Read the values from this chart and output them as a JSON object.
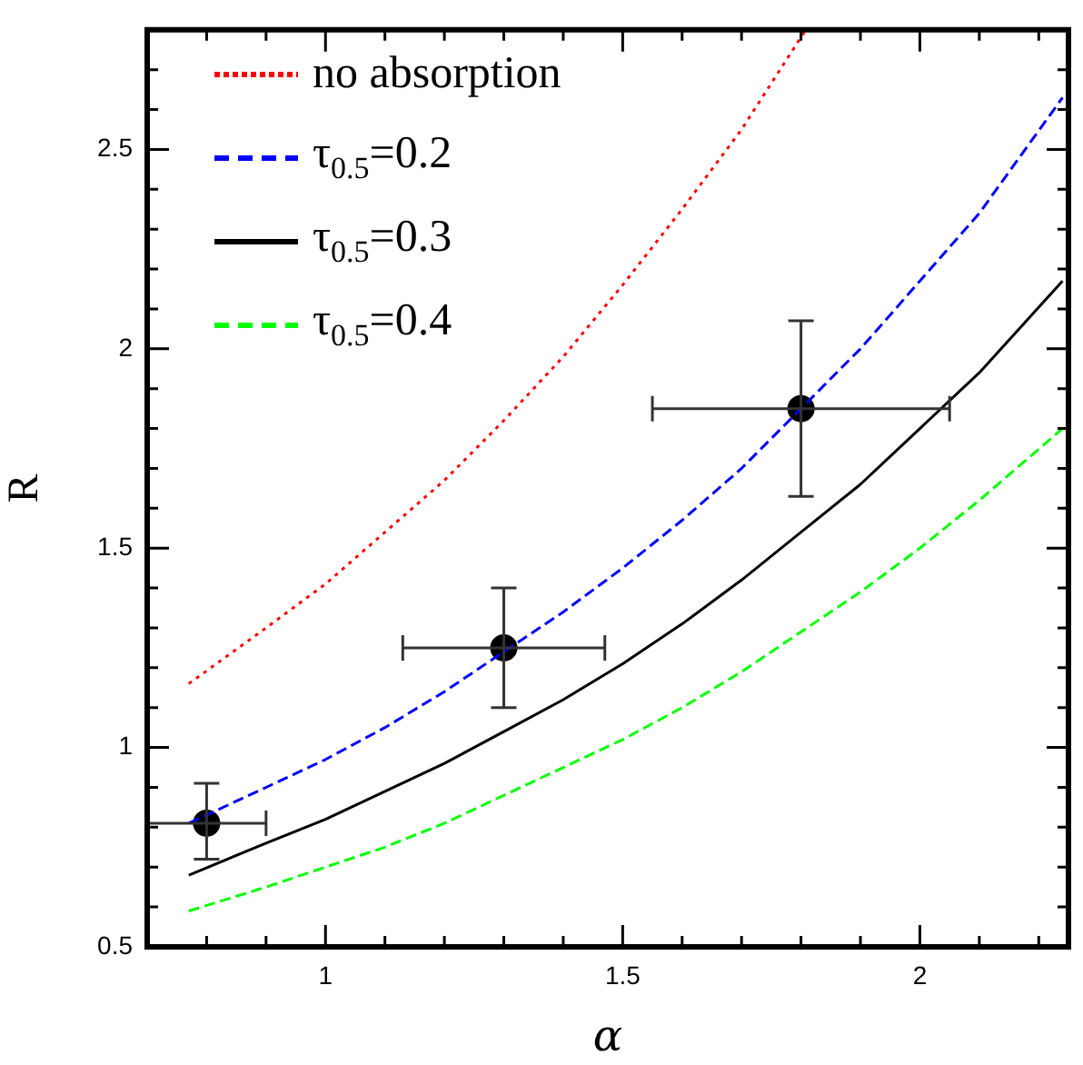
{
  "chart_data": {
    "type": "line",
    "xlabel": "α",
    "ylabel": "R",
    "xlim": [
      0.7,
      2.25
    ],
    "ylim": [
      0.5,
      2.8
    ],
    "xticks": [
      {
        "value": 0.7,
        "label": null
      },
      {
        "value": 0.8,
        "label": null
      },
      {
        "value": 0.9,
        "label": null
      },
      1,
      {
        "value": 1.1,
        "label": null
      },
      {
        "value": 1.2,
        "label": null
      },
      {
        "value": 1.3,
        "label": null
      },
      {
        "value": 1.4,
        "label": null
      },
      1.5,
      {
        "value": 1.6,
        "label": null
      },
      {
        "value": 1.7,
        "label": null
      },
      {
        "value": 1.8,
        "label": null
      },
      {
        "value": 1.9,
        "label": null
      },
      2,
      {
        "value": 2.1,
        "label": null
      },
      {
        "value": 2.2,
        "label": null
      }
    ],
    "yticks": [
      0.5,
      {
        "value": 0.6,
        "label": null
      },
      {
        "value": 0.7,
        "label": null
      },
      {
        "value": 0.8,
        "label": null
      },
      {
        "value": 0.9,
        "label": null
      },
      1,
      {
        "value": 1.1,
        "label": null
      },
      {
        "value": 1.2,
        "label": null
      },
      {
        "value": 1.3,
        "label": null
      },
      {
        "value": 1.4,
        "label": null
      },
      1.5,
      {
        "value": 1.6,
        "label": null
      },
      {
        "value": 1.7,
        "label": null
      },
      {
        "value": 1.8,
        "label": null
      },
      {
        "value": 1.9,
        "label": null
      },
      2,
      {
        "value": 2.1,
        "label": null
      },
      {
        "value": 2.2,
        "label": null
      },
      {
        "value": 2.3,
        "label": null
      },
      {
        "value": 2.4,
        "label": null
      },
      2.5,
      {
        "value": 2.6,
        "label": null
      },
      {
        "value": 2.7,
        "label": null
      }
    ],
    "grid": false,
    "legend": "top left",
    "marker": "none",
    "series": [
      {
        "name": "no absorption",
        "color": "#ff0000",
        "line_style": "dotted",
        "x": [
          0.77,
          0.9,
          1.0,
          1.1,
          1.2,
          1.3,
          1.4,
          1.5,
          1.6,
          1.7,
          1.808
        ],
        "values": [
          1.16,
          1.3,
          1.41,
          1.54,
          1.67,
          1.82,
          1.98,
          2.16,
          2.35,
          2.55,
          2.8
        ]
      },
      {
        "name": "τ$_{0.5}$=0.2",
        "color": "#0000ff",
        "line_style": "dashed",
        "x": [
          0.77,
          0.9,
          1.0,
          1.1,
          1.2,
          1.3,
          1.4,
          1.5,
          1.6,
          1.7,
          1.8,
          1.9,
          2.0,
          2.1,
          2.24
        ],
        "values": [
          0.81,
          0.9,
          0.97,
          1.05,
          1.14,
          1.24,
          1.34,
          1.45,
          1.57,
          1.7,
          1.85,
          2.0,
          2.17,
          2.34,
          2.63
        ]
      },
      {
        "name": "τ$_{0.5}$=0.3",
        "color": "#000000",
        "line_style": "solid",
        "x": [
          0.77,
          0.9,
          1.0,
          1.1,
          1.2,
          1.3,
          1.4,
          1.5,
          1.6,
          1.7,
          1.8,
          1.9,
          2.0,
          2.1,
          2.24
        ],
        "values": [
          0.68,
          0.76,
          0.82,
          0.89,
          0.96,
          1.04,
          1.12,
          1.21,
          1.31,
          1.42,
          1.54,
          1.66,
          1.8,
          1.94,
          2.17
        ]
      },
      {
        "name": "τ$_{0.5}$=0.4",
        "color": "#00ff00",
        "line_style": "dashed",
        "x": [
          0.77,
          0.9,
          1.0,
          1.1,
          1.2,
          1.3,
          1.4,
          1.5,
          1.6,
          1.7,
          1.8,
          1.9,
          2.0,
          2.1,
          2.24
        ],
        "values": [
          0.59,
          0.65,
          0.7,
          0.75,
          0.81,
          0.88,
          0.95,
          1.02,
          1.1,
          1.19,
          1.29,
          1.39,
          1.5,
          1.62,
          1.8
        ]
      },
      {
        "type": "scatter",
        "color": "#000000",
        "marker": "circle",
        "x": [
          0.8,
          1.3,
          1.8
        ],
        "values": [
          0.81,
          1.25,
          1.85
        ],
        "errors": [
          [
            0.72,
            0.91
          ],
          [
            1.1,
            1.4
          ],
          [
            1.63,
            2.07
          ]
        ],
        "xerrors": [
          [
            0.7,
            0.9
          ],
          [
            1.13,
            1.47
          ],
          [
            1.55,
            2.05
          ]
        ]
      }
    ]
  }
}
